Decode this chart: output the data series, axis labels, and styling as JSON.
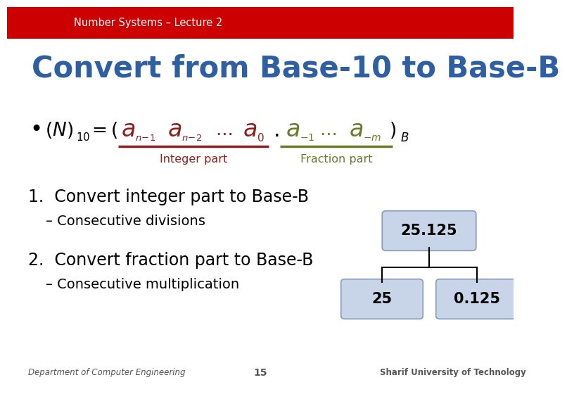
{
  "header_bg_color": "#CC0000",
  "header_text": "Number Systems – Lecture 2",
  "header_text_color": "#FFFFFF",
  "title_text": "Convert from Base-10 to Base-B",
  "title_color": "#2E5FA3",
  "bg_color": "#FFFFFF",
  "formula_color_red": "#8B2020",
  "formula_color_green": "#6B7A2A",
  "integer_part_label": "Integer part",
  "integer_part_color": "#8B2020",
  "fraction_part_label": "Fraction part",
  "fraction_part_color": "#6B7A2A",
  "point1_text": "1.  Convert integer part to Base-B",
  "sub1_text": "– Consecutive divisions",
  "point2_text": "2.  Convert fraction part to Base-B",
  "sub2_text": "– Consecutive multiplication",
  "box_top_text": "25.125",
  "box_left_text": "25",
  "box_right_text": "0.125",
  "box_fill_color": "#C8D4E8",
  "box_edge_color": "#8899BB",
  "footer_left": "Department of Computer Engineering",
  "footer_center": "15",
  "footer_right": "Sharif University of Technology",
  "footer_color": "#555555"
}
